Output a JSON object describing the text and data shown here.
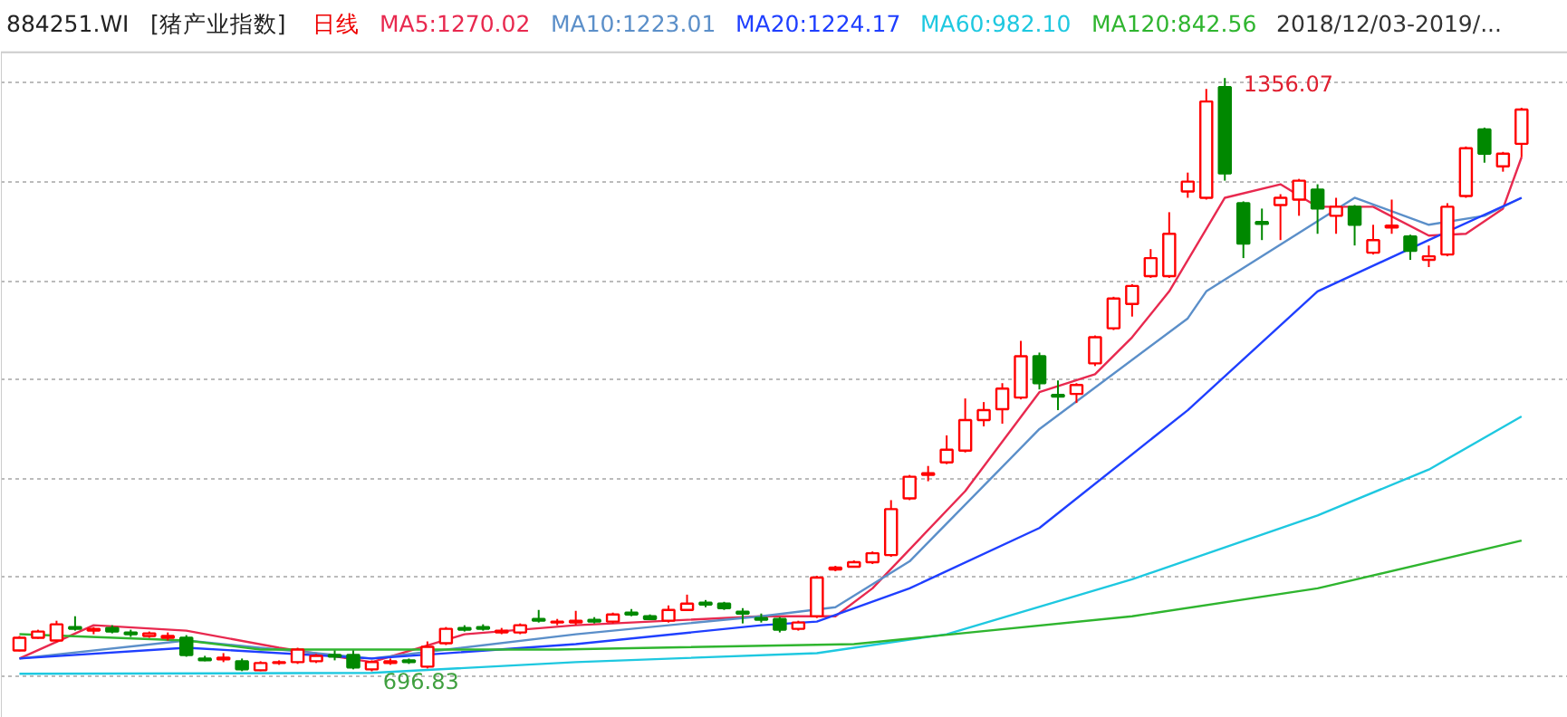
{
  "chart_data": {
    "type": "candlestick",
    "title": "884251.WI",
    "subtitle": "[猪产业指数]",
    "annotations": [
      "日线",
      "2018/12/03-2019/...",
      "1356.07",
      "696.83"
    ],
    "categories": [
      null,
      null,
      null,
      null,
      null,
      null,
      null,
      null,
      null,
      null,
      null,
      null,
      null,
      null,
      null,
      null,
      null,
      null,
      null,
      null,
      null,
      null,
      null,
      null,
      null,
      null,
      null,
      null,
      null,
      null,
      null,
      null,
      null,
      null,
      null,
      null,
      null,
      null,
      null,
      null,
      null,
      null,
      null,
      null,
      null,
      null,
      null,
      null,
      null,
      null,
      null,
      null,
      null,
      null,
      null,
      null,
      null,
      null,
      null,
      null,
      null,
      null,
      null,
      null,
      null,
      null,
      null,
      null,
      null,
      null,
      null,
      null,
      null,
      null,
      null,
      null,
      null,
      null,
      null,
      null,
      null,
      null
    ],
    "colors": [
      "#ff0000",
      "#ff0000",
      "#ff0000",
      "#008800",
      "#ff0000",
      "#008800",
      "#008800",
      "#ff0000",
      "#ff0000",
      "#008800",
      "#008800",
      "#ff0000",
      "#008800",
      "#ff0000",
      "#ff0000",
      "#ff0000",
      "#ff0000",
      "#008800",
      "#008800",
      "#ff0000",
      "#ff0000",
      "#008800",
      "#ff0000",
      "#ff0000",
      "#008800",
      "#008800",
      "#ff0000",
      "#ff0000",
      "#008800",
      "#ff0000",
      "#ff0000",
      "#008800",
      "#ff0000",
      "#008800",
      "#008800",
      "#ff0000",
      "#ff0000",
      "#008800",
      "#008800",
      "#008800",
      "#008800",
      "#008800",
      "#ff0000",
      "#ff0000",
      "#ff0000",
      "#ff0000",
      "#ff0000",
      "#ff0000",
      "#ff0000",
      "#ff0000",
      "#ff0000",
      "#ff0000",
      "#ff0000",
      "#ff0000",
      "#ff0000",
      "#008800",
      "#008800",
      "#ff0000",
      "#ff0000",
      "#ff0000",
      "#ff0000",
      "#ff0000",
      "#ff0000",
      "#ff0000",
      "#ff0000",
      "#008800",
      "#008800",
      "#008800",
      "#ff0000",
      "#ff0000",
      "#008800",
      "#ff0000",
      "#008800",
      "#ff0000",
      "#ff0000",
      "#008800",
      "#ff0000",
      "#ff0000",
      "#ff0000",
      "#008800",
      "#ff0000",
      "#ff0000"
    ],
    "ohlc": [
      [
        720,
        736,
        719,
        734
      ],
      [
        734,
        743,
        733,
        741
      ],
      [
        731,
        753,
        729,
        749
      ],
      [
        746,
        758,
        742,
        744
      ],
      [
        742,
        746,
        738,
        744
      ],
      [
        745,
        748,
        739,
        741
      ],
      [
        740,
        743,
        735,
        738
      ],
      [
        736,
        741,
        734,
        739
      ],
      [
        734,
        740,
        731,
        736
      ],
      [
        734,
        737,
        713,
        715
      ],
      [
        711,
        714,
        708,
        709
      ],
      [
        710,
        717,
        707,
        712
      ],
      [
        708,
        711,
        697,
        699
      ],
      [
        698,
        708,
        697,
        706
      ],
      [
        706,
        709,
        704,
        707
      ],
      [
        707,
        723,
        705,
        721
      ],
      [
        708,
        716,
        706,
        714
      ],
      [
        715,
        720,
        709,
        713
      ],
      [
        715,
        720,
        699,
        701
      ],
      [
        699,
        709,
        696.83,
        707
      ],
      [
        706,
        711,
        704,
        708
      ],
      [
        709,
        711,
        705,
        707
      ],
      [
        702,
        730,
        700,
        724
      ],
      [
        728,
        746,
        726,
        744
      ],
      [
        745,
        748,
        741,
        743
      ],
      [
        746,
        749,
        742,
        744
      ],
      [
        740,
        745,
        738,
        742
      ],
      [
        740,
        750,
        738,
        748
      ],
      [
        755,
        765,
        751,
        753
      ],
      [
        751,
        755,
        748,
        752
      ],
      [
        751,
        764,
        748,
        753
      ],
      [
        754,
        757,
        750,
        752
      ],
      [
        752,
        762,
        750,
        760
      ],
      [
        762,
        766,
        758,
        760
      ],
      [
        758,
        760,
        754,
        755
      ],
      [
        753,
        770,
        751,
        765
      ],
      [
        765,
        782,
        764,
        772
      ],
      [
        773,
        776,
        768,
        771
      ],
      [
        772,
        774,
        765,
        767
      ],
      [
        763,
        767,
        750,
        761
      ],
      [
        756,
        761,
        751,
        754
      ],
      [
        755,
        757,
        740,
        743
      ],
      [
        744,
        753,
        742,
        751
      ],
      [
        758,
        803,
        756,
        801
      ],
      [
        810,
        814,
        808,
        812
      ],
      [
        813,
        820,
        812,
        818
      ],
      [
        818,
        830,
        816,
        828
      ],
      [
        826,
        887,
        824,
        877
      ],
      [
        889,
        915,
        887,
        913
      ],
      [
        915,
        925,
        908,
        917
      ],
      [
        929,
        959,
        927,
        943
      ],
      [
        942,
        1000,
        940,
        976
      ],
      [
        976,
        996,
        969,
        987
      ],
      [
        988,
        1017,
        972,
        1011
      ],
      [
        1001,
        1064,
        999,
        1047
      ],
      [
        1047,
        1051,
        1010,
        1017
      ],
      [
        1004,
        1020,
        987,
        1002
      ],
      [
        1005,
        1017,
        995,
        1015
      ],
      [
        1039,
        1070,
        1036,
        1068
      ],
      [
        1078,
        1113,
        1076,
        1111
      ],
      [
        1105,
        1127,
        1091,
        1125
      ],
      [
        1136,
        1166,
        1134,
        1156
      ],
      [
        1136,
        1207,
        1134,
        1183
      ],
      [
        1230,
        1251,
        1223,
        1241
      ],
      [
        1223,
        1344,
        1221,
        1330
      ],
      [
        1346,
        1356.07,
        1242,
        1250
      ],
      [
        1217,
        1219,
        1156,
        1172
      ],
      [
        1196,
        1211,
        1176,
        1194
      ],
      [
        1215,
        1227,
        1176,
        1223
      ],
      [
        1221,
        1244,
        1203,
        1242
      ],
      [
        1232,
        1238,
        1183,
        1211
      ],
      [
        1203,
        1223,
        1183,
        1213
      ],
      [
        1213,
        1215,
        1170,
        1193
      ],
      [
        1162,
        1193,
        1160,
        1176
      ],
      [
        1190,
        1221,
        1183,
        1192
      ],
      [
        1180,
        1182,
        1154,
        1164
      ],
      [
        1154,
        1170,
        1146,
        1158
      ],
      [
        1160,
        1217,
        1158,
        1213
      ],
      [
        1225,
        1280,
        1223,
        1278
      ],
      [
        1299,
        1301,
        1262,
        1272
      ],
      [
        1258,
        1274,
        1252,
        1272
      ],
      [
        1283,
        1323,
        1268,
        1321
      ]
    ],
    "series": [
      {
        "type": "line",
        "name": "MA5:1270.02",
        "color": "#e8294f",
        "values": [
          711,
          null,
          null,
          null,
          748,
          null,
          null,
          null,
          null,
          742,
          null,
          null,
          null,
          null,
          723,
          null,
          null,
          null,
          null,
          707,
          null,
          null,
          null,
          null,
          738,
          null,
          null,
          null,
          null,
          null,
          748,
          null,
          null,
          null,
          null,
          null,
          null,
          null,
          null,
          null,
          758,
          null,
          null,
          null,
          758,
          null,
          789,
          null,
          null,
          null,
          null,
          897,
          null,
          null,
          null,
          1007,
          null,
          null,
          1027,
          null,
          1068,
          null,
          1119,
          null,
          null,
          1223,
          null,
          null,
          1238,
          null,
          1213,
          null,
          null,
          1213,
          null,
          null,
          1181,
          null,
          1183,
          null,
          1211,
          1268
        ]
      },
      {
        "type": "line",
        "name": "MA10:1223.01",
        "color": "#5b8fc9",
        "values": [
          711,
          null,
          null,
          null,
          null,
          null,
          null,
          null,
          null,
          731,
          null,
          null,
          null,
          null,
          null,
          null,
          null,
          null,
          null,
          711,
          null,
          null,
          null,
          null,
          null,
          null,
          null,
          null,
          null,
          null,
          738,
          null,
          null,
          null,
          null,
          null,
          null,
          null,
          null,
          null,
          758,
          null,
          null,
          null,
          768,
          null,
          null,
          null,
          819,
          null,
          null,
          null,
          null,
          null,
          null,
          966,
          null,
          null,
          null,
          null,
          null,
          null,
          null,
          1089,
          1119,
          null,
          null,
          null,
          null,
          null,
          null,
          null,
          1223,
          null,
          null,
          null,
          1193,
          null,
          null,
          1203,
          null,
          1223
        ]
      },
      {
        "type": "line",
        "name": "MA20:1224.17",
        "color": "#1f3fff",
        "values": [
          711,
          null,
          null,
          null,
          null,
          null,
          null,
          null,
          null,
          723,
          null,
          null,
          null,
          null,
          null,
          null,
          null,
          null,
          null,
          711,
          null,
          null,
          null,
          null,
          null,
          null,
          null,
          null,
          null,
          null,
          727,
          null,
          null,
          null,
          null,
          null,
          null,
          null,
          null,
          null,
          748,
          null,
          null,
          752,
          null,
          null,
          null,
          null,
          789,
          null,
          null,
          null,
          null,
          null,
          null,
          856,
          null,
          null,
          null,
          null,
          null,
          null,
          null,
          987,
          null,
          null,
          null,
          null,
          null,
          null,
          1119,
          null,
          null,
          null,
          null,
          null,
          1176,
          null,
          null,
          null,
          null,
          1223
        ]
      },
      {
        "type": "line",
        "name": "MA60:982.10",
        "color": "#1ec8e0",
        "values": [
          694,
          null,
          null,
          null,
          null,
          null,
          null,
          null,
          null,
          null,
          null,
          null,
          null,
          null,
          null,
          null,
          null,
          null,
          null,
          695,
          null,
          null,
          null,
          null,
          null,
          null,
          null,
          null,
          null,
          null,
          707,
          null,
          null,
          null,
          null,
          null,
          null,
          null,
          null,
          null,
          null,
          null,
          null,
          717,
          null,
          null,
          null,
          null,
          null,
          null,
          738,
          null,
          null,
          null,
          null,
          null,
          null,
          null,
          null,
          null,
          799,
          null,
          null,
          null,
          null,
          null,
          null,
          null,
          null,
          null,
          870,
          null,
          null,
          null,
          null,
          null,
          921,
          null,
          null,
          null,
          null,
          980
        ]
      },
      {
        "type": "line",
        "name": "MA120:842.56",
        "color": "#2fb52f",
        "values": [
          738,
          null,
          null,
          null,
          null,
          null,
          null,
          null,
          null,
          731,
          null,
          null,
          null,
          721,
          null,
          null,
          null,
          null,
          null,
          null,
          null,
          null,
          null,
          null,
          null,
          null,
          null,
          null,
          null,
          721,
          null,
          null,
          null,
          null,
          null,
          null,
          null,
          null,
          null,
          null,
          null,
          null,
          null,
          null,
          null,
          727,
          null,
          null,
          null,
          null,
          null,
          null,
          null,
          null,
          null,
          null,
          null,
          null,
          null,
          null,
          758,
          null,
          null,
          null,
          null,
          null,
          null,
          null,
          null,
          null,
          789,
          null,
          null,
          null,
          null,
          null,
          null,
          null,
          null,
          null,
          null,
          842
        ]
      }
    ],
    "grid": "y"
  }
}
